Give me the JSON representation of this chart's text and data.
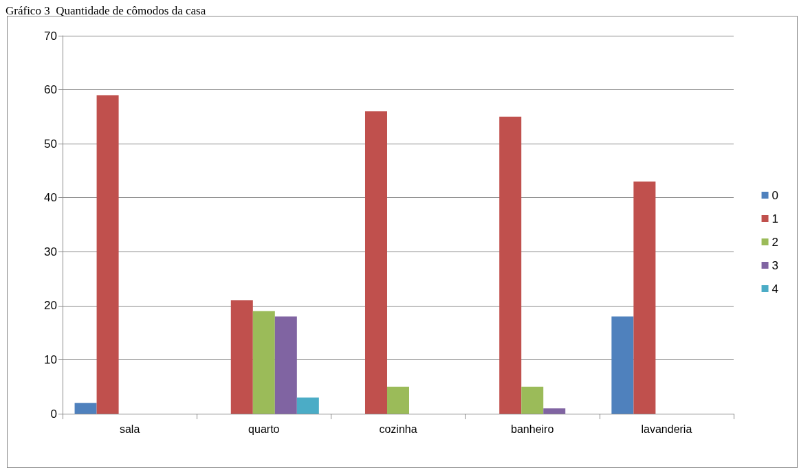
{
  "chart_data": {
    "type": "bar",
    "title": "Gráfico 3  Quantidade de cômodos da casa",
    "categories": [
      "sala",
      "quarto",
      "cozinha",
      "banheiro",
      "lavanderia"
    ],
    "series": [
      {
        "name": "0",
        "color": "#4f81bd",
        "values": [
          2,
          0,
          0,
          0,
          18
        ]
      },
      {
        "name": "1",
        "color": "#c0504d",
        "values": [
          59,
          21,
          56,
          55,
          43
        ]
      },
      {
        "name": "2",
        "color": "#9bbb59",
        "values": [
          0,
          19,
          5,
          5,
          0
        ]
      },
      {
        "name": "3",
        "color": "#8064a2",
        "values": [
          0,
          18,
          0,
          1,
          0
        ]
      },
      {
        "name": "4",
        "color": "#4bacc6",
        "values": [
          0,
          3,
          0,
          0,
          0
        ]
      }
    ],
    "ylim": [
      0,
      70
    ],
    "yticks": [
      0,
      10,
      20,
      30,
      40,
      50,
      60,
      70
    ],
    "grid": "y",
    "legend": "right"
  }
}
